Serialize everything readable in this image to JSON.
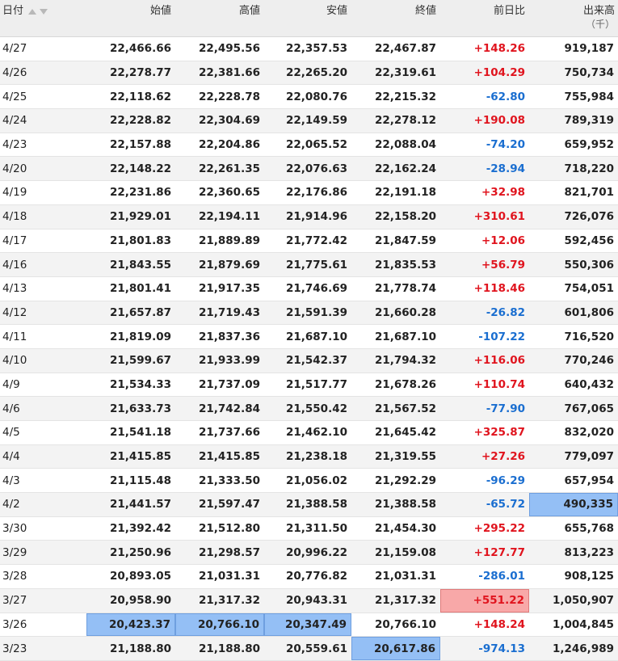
{
  "header": {
    "date": "日付",
    "open": "始値",
    "high": "高値",
    "low": "安値",
    "close": "終値",
    "change": "前日比",
    "volume": "出来高",
    "volume_unit": "（千）"
  },
  "colors": {
    "up": "#e0141e",
    "down": "#1a6ed0",
    "highlight_blue": "#94bff5",
    "highlight_red": "#f8a8a8"
  },
  "rows": [
    {
      "date": "4/27",
      "open": "22,466.66",
      "high": "22,495.56",
      "low": "22,357.53",
      "close": "22,467.87",
      "change": "+148.26",
      "volume": "919,187"
    },
    {
      "date": "4/26",
      "open": "22,278.77",
      "high": "22,381.66",
      "low": "22,265.20",
      "close": "22,319.61",
      "change": "+104.29",
      "volume": "750,734"
    },
    {
      "date": "4/25",
      "open": "22,118.62",
      "high": "22,228.78",
      "low": "22,080.76",
      "close": "22,215.32",
      "change": "-62.80",
      "volume": "755,984"
    },
    {
      "date": "4/24",
      "open": "22,228.82",
      "high": "22,304.69",
      "low": "22,149.59",
      "close": "22,278.12",
      "change": "+190.08",
      "volume": "789,319"
    },
    {
      "date": "4/23",
      "open": "22,157.88",
      "high": "22,204.86",
      "low": "22,065.52",
      "close": "22,088.04",
      "change": "-74.20",
      "volume": "659,952"
    },
    {
      "date": "4/20",
      "open": "22,148.22",
      "high": "22,261.35",
      "low": "22,076.63",
      "close": "22,162.24",
      "change": "-28.94",
      "volume": "718,220"
    },
    {
      "date": "4/19",
      "open": "22,231.86",
      "high": "22,360.65",
      "low": "22,176.86",
      "close": "22,191.18",
      "change": "+32.98",
      "volume": "821,701"
    },
    {
      "date": "4/18",
      "open": "21,929.01",
      "high": "22,194.11",
      "low": "21,914.96",
      "close": "22,158.20",
      "change": "+310.61",
      "volume": "726,076"
    },
    {
      "date": "4/17",
      "open": "21,801.83",
      "high": "21,889.89",
      "low": "21,772.42",
      "close": "21,847.59",
      "change": "+12.06",
      "volume": "592,456"
    },
    {
      "date": "4/16",
      "open": "21,843.55",
      "high": "21,879.69",
      "low": "21,775.61",
      "close": "21,835.53",
      "change": "+56.79",
      "volume": "550,306"
    },
    {
      "date": "4/13",
      "open": "21,801.41",
      "high": "21,917.35",
      "low": "21,746.69",
      "close": "21,778.74",
      "change": "+118.46",
      "volume": "754,051"
    },
    {
      "date": "4/12",
      "open": "21,657.87",
      "high": "21,719.43",
      "low": "21,591.39",
      "close": "21,660.28",
      "change": "-26.82",
      "volume": "601,806"
    },
    {
      "date": "4/11",
      "open": "21,819.09",
      "high": "21,837.36",
      "low": "21,687.10",
      "close": "21,687.10",
      "change": "-107.22",
      "volume": "716,520"
    },
    {
      "date": "4/10",
      "open": "21,599.67",
      "high": "21,933.99",
      "low": "21,542.37",
      "close": "21,794.32",
      "change": "+116.06",
      "volume": "770,246"
    },
    {
      "date": "4/9",
      "open": "21,534.33",
      "high": "21,737.09",
      "low": "21,517.77",
      "close": "21,678.26",
      "change": "+110.74",
      "volume": "640,432"
    },
    {
      "date": "4/6",
      "open": "21,633.73",
      "high": "21,742.84",
      "low": "21,550.42",
      "close": "21,567.52",
      "change": "-77.90",
      "volume": "767,065"
    },
    {
      "date": "4/5",
      "open": "21,541.18",
      "high": "21,737.66",
      "low": "21,462.10",
      "close": "21,645.42",
      "change": "+325.87",
      "volume": "832,020"
    },
    {
      "date": "4/4",
      "open": "21,415.85",
      "high": "21,415.85",
      "low": "21,238.18",
      "close": "21,319.55",
      "change": "+27.26",
      "volume": "779,097"
    },
    {
      "date": "4/3",
      "open": "21,115.48",
      "high": "21,333.50",
      "low": "21,056.02",
      "close": "21,292.29",
      "change": "-96.29",
      "volume": "657,954"
    },
    {
      "date": "4/2",
      "open": "21,441.57",
      "high": "21,597.47",
      "low": "21,388.58",
      "close": "21,388.58",
      "change": "-65.72",
      "volume": "490,335",
      "hl": {
        "volume": "blue"
      }
    },
    {
      "date": "3/30",
      "open": "21,392.42",
      "high": "21,512.80",
      "low": "21,311.50",
      "close": "21,454.30",
      "change": "+295.22",
      "volume": "655,768"
    },
    {
      "date": "3/29",
      "open": "21,250.96",
      "high": "21,298.57",
      "low": "20,996.22",
      "close": "21,159.08",
      "change": "+127.77",
      "volume": "813,223"
    },
    {
      "date": "3/28",
      "open": "20,893.05",
      "high": "21,031.31",
      "low": "20,776.82",
      "close": "21,031.31",
      "change": "-286.01",
      "volume": "908,125"
    },
    {
      "date": "3/27",
      "open": "20,958.90",
      "high": "21,317.32",
      "low": "20,943.31",
      "close": "21,317.32",
      "change": "+551.22",
      "volume": "1,050,907",
      "hl": {
        "change": "red"
      }
    },
    {
      "date": "3/26",
      "open": "20,423.37",
      "high": "20,766.10",
      "low": "20,347.49",
      "close": "20,766.10",
      "change": "+148.24",
      "volume": "1,004,845",
      "hl": {
        "open": "blue",
        "high": "blue",
        "low": "blue"
      }
    },
    {
      "date": "3/23",
      "open": "21,188.80",
      "high": "21,188.80",
      "low": "20,559.61",
      "close": "20,617.86",
      "change": "-974.13",
      "volume": "1,246,989",
      "hl": {
        "close": "blue"
      }
    }
  ]
}
